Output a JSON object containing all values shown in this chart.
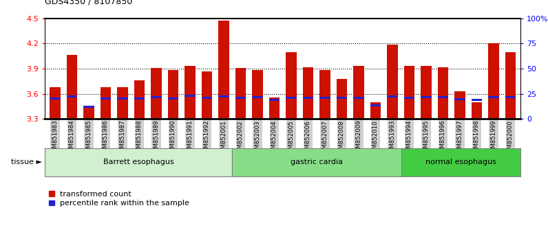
{
  "title": "GDS4350 / 8107850",
  "samples": [
    "GSM851983",
    "GSM851984",
    "GSM851985",
    "GSM851986",
    "GSM851987",
    "GSM851988",
    "GSM851989",
    "GSM851990",
    "GSM851991",
    "GSM851992",
    "GSM852001",
    "GSM852002",
    "GSM852003",
    "GSM852004",
    "GSM852005",
    "GSM852006",
    "GSM852007",
    "GSM852008",
    "GSM852009",
    "GSM852010",
    "GSM851993",
    "GSM851994",
    "GSM851995",
    "GSM851996",
    "GSM851997",
    "GSM851998",
    "GSM851999",
    "GSM852000"
  ],
  "red_values": [
    3.68,
    4.06,
    3.46,
    3.68,
    3.68,
    3.76,
    3.91,
    3.88,
    3.93,
    3.87,
    4.47,
    3.91,
    3.88,
    3.56,
    4.1,
    3.92,
    3.88,
    3.78,
    3.93,
    3.5,
    4.19,
    3.93,
    3.93,
    3.92,
    3.63,
    3.5,
    4.2,
    4.1
  ],
  "blue_values": [
    3.545,
    3.57,
    3.45,
    3.545,
    3.545,
    3.545,
    3.558,
    3.545,
    3.575,
    3.552,
    3.568,
    3.55,
    3.558,
    3.532,
    3.55,
    3.55,
    3.55,
    3.55,
    3.55,
    3.462,
    3.568,
    3.55,
    3.558,
    3.558,
    3.54,
    3.532,
    3.558,
    3.558
  ],
  "groups": [
    {
      "label": "Barrett esophagus",
      "start": 0,
      "end": 11,
      "color": "#d0f0d0"
    },
    {
      "label": "gastric cardia",
      "start": 11,
      "end": 21,
      "color": "#88dd88"
    },
    {
      "label": "normal esophagus",
      "start": 21,
      "end": 28,
      "color": "#44cc44"
    }
  ],
  "ylim_left": [
    3.3,
    4.5
  ],
  "yticks_left": [
    3.3,
    3.6,
    3.9,
    4.2,
    4.5
  ],
  "ylim_right": [
    0,
    100
  ],
  "yticks_right": [
    0,
    25,
    50,
    75,
    100
  ],
  "ytick_labels_right": [
    "0",
    "25",
    "50",
    "75",
    "100%"
  ],
  "bar_color": "#cc1100",
  "blue_color": "#2222cc",
  "bar_width": 0.65,
  "plot_bg": "#ffffff",
  "fig_bg": "#ffffff",
  "tick_label_bg": "#d0d0d0"
}
